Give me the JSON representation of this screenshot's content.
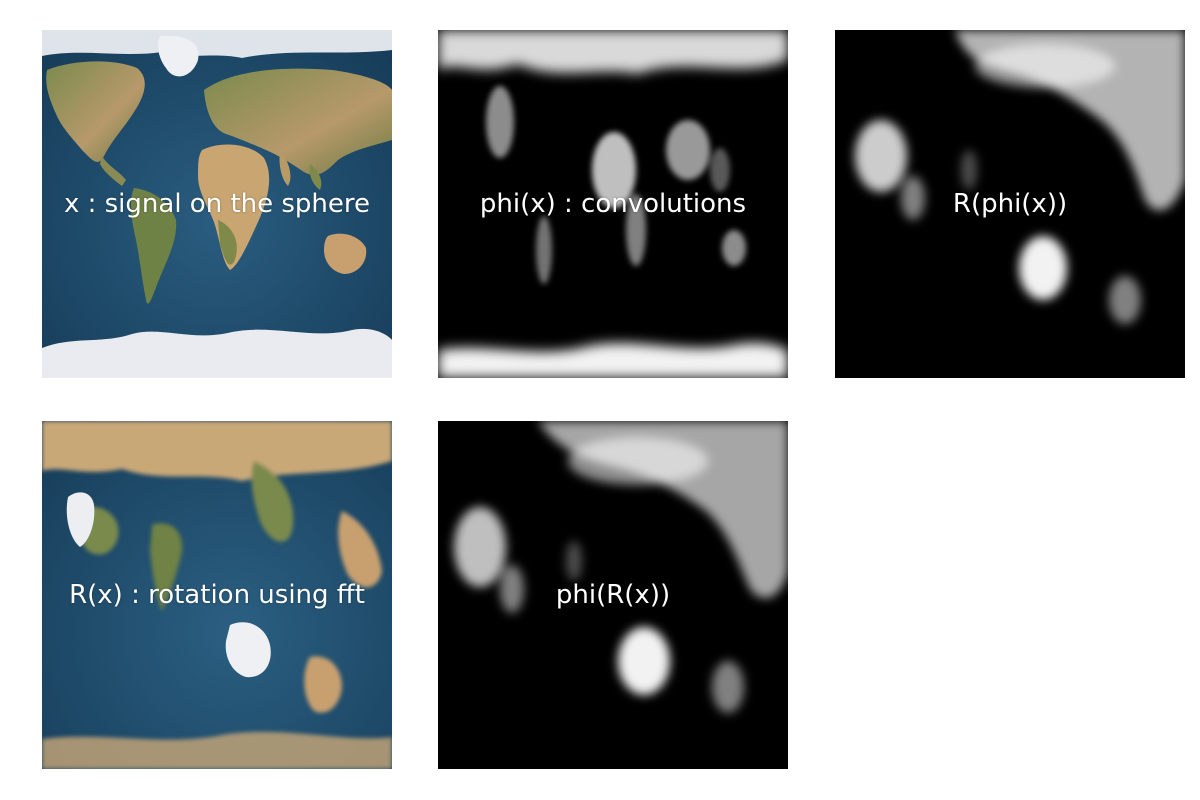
{
  "panels": [
    {
      "id": "signal",
      "caption": "x : signal on the sphere"
    },
    {
      "id": "convolutions",
      "caption": "phi(x) : convolutions"
    },
    {
      "id": "rotated-convolutions",
      "caption": "R(phi(x))"
    },
    {
      "id": "rotation-fft",
      "caption": "R(x) : rotation using fft"
    },
    {
      "id": "convolutions-of-rotated",
      "caption": "phi(R(x))"
    }
  ],
  "colors": {
    "ocean": "#1f4d6e",
    "land_green": "#6e7d45",
    "land_desert": "#c8a878",
    "ice": "#e6e8ee",
    "feature_black": "#000000",
    "feature_white": "#ffffff"
  }
}
